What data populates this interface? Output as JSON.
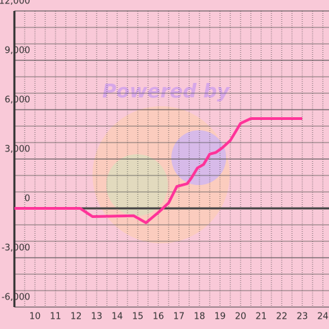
{
  "chart_data": {
    "type": "line",
    "watermark": "Powered by",
    "x": [
      9,
      12.2,
      12.8,
      14.8,
      15.4,
      16.0,
      16.5,
      16.9,
      17.1,
      17.4,
      17.6,
      17.9,
      18.2,
      18.5,
      18.8,
      19.1,
      19.5,
      19.8,
      20.0,
      20.5,
      23.0
    ],
    "series": [
      {
        "color": "#ff3399",
        "values": [
          0,
          0,
          -500,
          -450,
          -875,
          -250,
          330,
          1330,
          1400,
          1500,
          1830,
          2450,
          2670,
          3300,
          3400,
          3670,
          4125,
          4750,
          5170,
          5460,
          5460
        ]
      }
    ],
    "xlim": [
      9,
      24.3
    ],
    "xticks": [
      10,
      11,
      12,
      13,
      14,
      15,
      16,
      17,
      18,
      19,
      20,
      21,
      22,
      23,
      24
    ],
    "ylim": [
      -6000,
      12000
    ],
    "yticks": [
      {
        "value": -6000,
        "label": "-6,000"
      },
      {
        "value": -3000,
        "label": "-3,000"
      },
      0,
      {
        "value": 3000,
        "label": "3,000"
      },
      {
        "value": 6000,
        "label": "6,000"
      },
      {
        "value": 9000,
        "label": "9,000"
      },
      {
        "value": 12000,
        "label": "12,000"
      }
    ],
    "grid": true
  }
}
